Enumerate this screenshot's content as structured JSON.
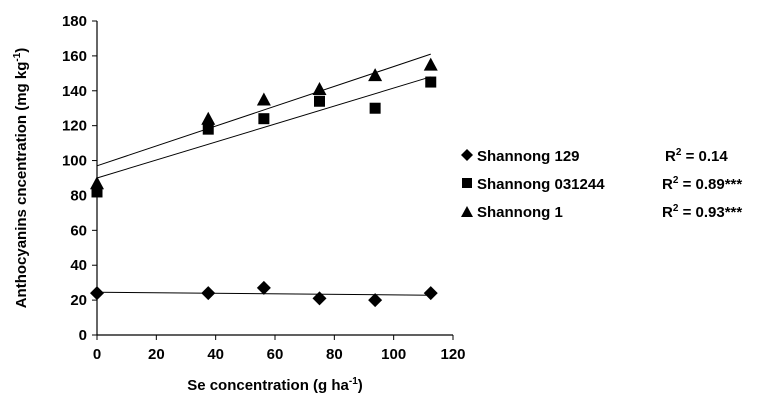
{
  "chart_data": {
    "type": "scatter",
    "xlabel": "Se concentration (g ha",
    "xlabel_sup": "-1",
    "xlabel_tail": ")",
    "ylabel": "Anthocyanins cncentration (mg kg",
    "ylabel_sup": "-1",
    "ylabel_tail": ")",
    "xlim": [
      0,
      120
    ],
    "ylim": [
      0,
      180
    ],
    "xticks": [
      "0",
      "20",
      "40",
      "60",
      "80",
      "100",
      "120"
    ],
    "yticks": [
      "0",
      "20",
      "40",
      "60",
      "80",
      "100",
      "120",
      "140",
      "160",
      "180"
    ],
    "grid": false,
    "legend_position": "right",
    "series": [
      {
        "name": "Shannong 129",
        "marker": "diamond",
        "x": [
          0,
          37.5,
          56.25,
          75,
          93.75,
          112.5
        ],
        "y": [
          24,
          24,
          27,
          21,
          20,
          24
        ],
        "trendline": [
          24.5,
          22.8
        ],
        "r2_label": "R",
        "r2_sup": "2",
        "r2_value": " = 0.14"
      },
      {
        "name": "Shannong 031244",
        "marker": "square",
        "x": [
          0,
          37.5,
          56.25,
          75,
          93.75,
          112.5
        ],
        "y": [
          82,
          118,
          124,
          134,
          130,
          145
        ],
        "trendline": [
          90,
          148
        ],
        "r2_label": "R",
        "r2_sup": "2",
        "r2_value": " = 0.89***"
      },
      {
        "name": "Shannong 1",
        "marker": "triangle",
        "x": [
          0,
          37.5,
          56.25,
          75,
          93.75,
          112.5
        ],
        "y": [
          87,
          124,
          135,
          141,
          149,
          155
        ],
        "trendline": [
          97,
          161
        ],
        "r2_label": "R",
        "r2_sup": "2",
        "r2_value": " = 0.93***"
      }
    ]
  }
}
